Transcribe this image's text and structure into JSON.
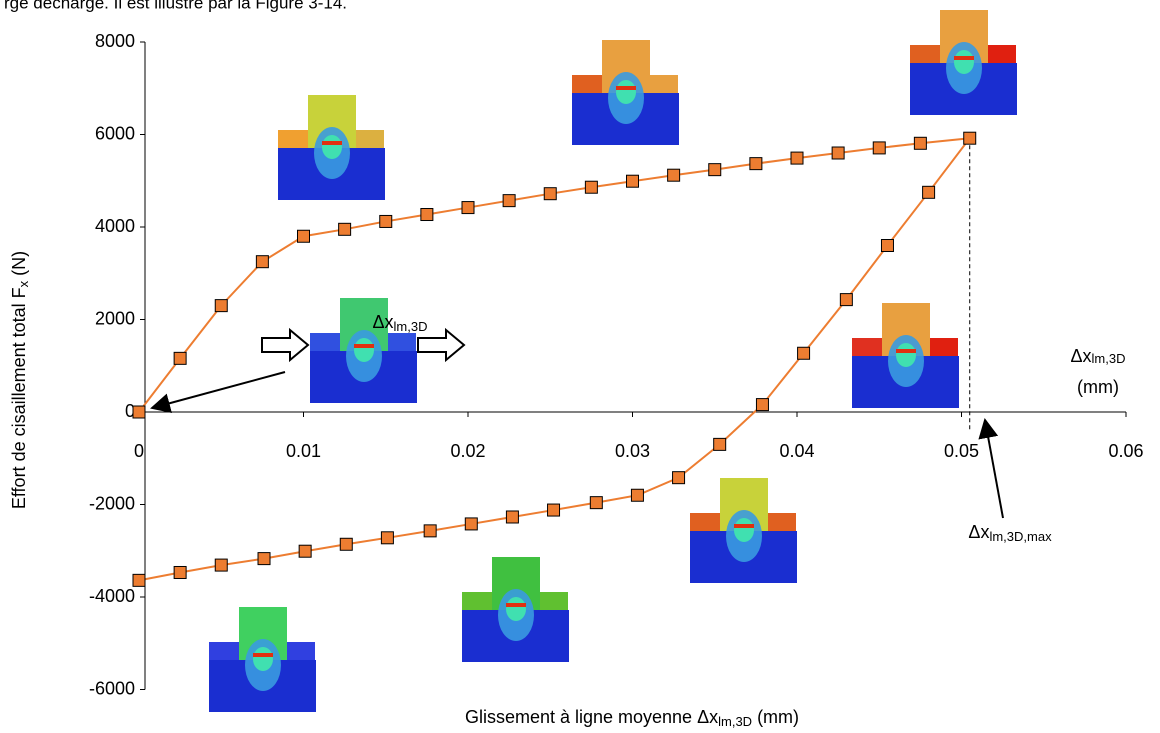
{
  "caption": "rge décharge. Il est illustré par la Figure 3-14.",
  "chart_data": {
    "type": "line",
    "ylabel_parts": [
      "Effort de cisaillement total F",
      "x",
      " (N)"
    ],
    "xlabel_parts": [
      "Glissement à ligne moyenne Δx",
      "lm,3D",
      " (mm)"
    ],
    "annotations": {
      "arrow_label": [
        "Δx",
        "lm,3D"
      ],
      "axis_label": [
        "Δx",
        "lm,3D",
        "(mm)"
      ],
      "max_label": [
        "Δx",
        "lm,3D,max"
      ]
    },
    "x": [
      0,
      0.0025,
      0.005,
      0.0075,
      0.01,
      0.0125,
      0.015,
      0.0175,
      0.02,
      0.0225,
      0.025,
      0.0275,
      0.03,
      0.0325,
      0.035,
      0.0375,
      0.04,
      0.0425,
      0.045,
      0.0475,
      0.0505,
      0.048,
      0.0455,
      0.043,
      0.0404,
      0.0379,
      0.0353,
      0.0328,
      0.0303,
      0.0278,
      0.0252,
      0.0227,
      0.0202,
      0.0177,
      0.0151,
      0.0126,
      0.0101,
      0.0076,
      0.005,
      0.0025,
      0
    ],
    "series": [
      {
        "name": "Effort",
        "color": "#ED7D31",
        "values": [
          0,
          1160,
          2300,
          3250,
          3800,
          3950,
          4120,
          4270,
          4420,
          4570,
          4720,
          4860,
          4990,
          5120,
          5240,
          5370,
          5490,
          5600,
          5710,
          5810,
          5920,
          4750,
          3600,
          2430,
          1270,
          160,
          -700,
          -1420,
          -1800,
          -1960,
          -2120,
          -2270,
          -2420,
          -2570,
          -2720,
          -2860,
          -3010,
          -3170,
          -3310,
          -3470,
          -3640
        ]
      }
    ],
    "xlim": [
      0,
      0.06
    ],
    "xticks": [
      0,
      0.01,
      0.02,
      0.03,
      0.04,
      0.05,
      0.06
    ],
    "ylim": [
      -6000,
      8000
    ],
    "yticks": [
      -6000,
      -4000,
      -2000,
      0,
      2000,
      4000,
      6000,
      8000
    ],
    "max_marker_x": 0.0505,
    "grid": false
  }
}
